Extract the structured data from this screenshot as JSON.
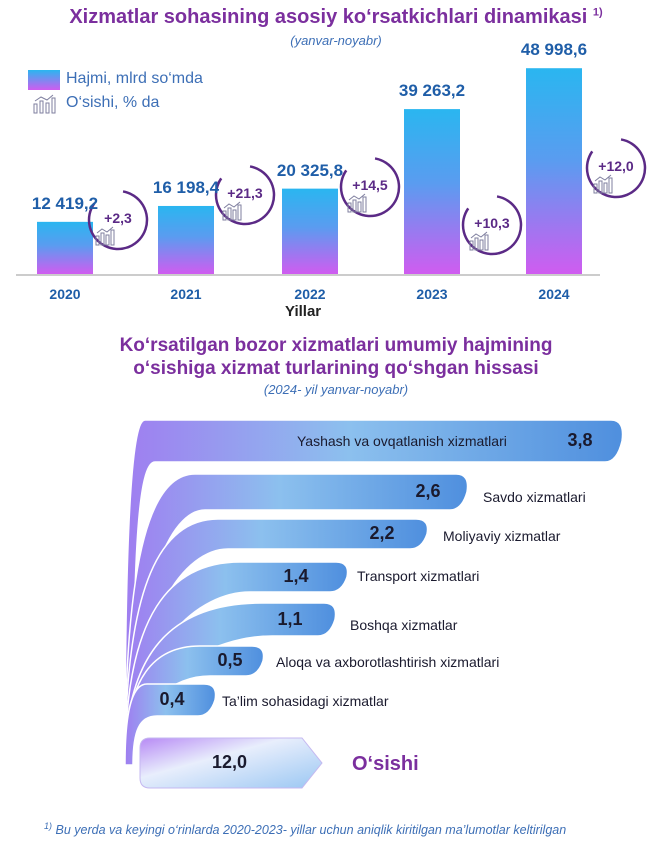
{
  "title_top": "Xizmatlar sohasining asosiy ko‘rsatkichlari dinamikasi",
  "title_top_note": "1)",
  "subtitle_top": "(yanvar-noyabr)",
  "legend": {
    "volume": "Hajmi, mlrd so‘mda",
    "growth": "O‘sishi, % da"
  },
  "x_axis_title": "Yillar",
  "title_bottom_line1": "Ko‘rsatilgan bozor xizmatlari umumiy hajmining",
  "title_bottom_line2": "o‘sishiga xizmat turlarining qo‘shgan hissasi",
  "subtitle_bottom": "(2024- yil yanvar-noyabr)",
  "footnote_mark": "1)",
  "footnote_text": "Bu yerda va keyingi o‘rinlarda 2020-2023- yillar uchun aniqlik kiritilgan ma’lumotlar keltirilgan",
  "colors": {
    "title": "#7b2f9e",
    "value": "#1f5ea8",
    "bar_top": "#2ab6f0",
    "bar_bottom": "#d05cf0",
    "arc": "#5b2a86"
  },
  "chart_data": [
    {
      "type": "bar",
      "categories": [
        "2020",
        "2021",
        "2022",
        "2023",
        "2024"
      ],
      "values": [
        12419.2,
        16198.4,
        20325.8,
        39263.2,
        48998.6
      ],
      "value_labels": [
        "12 419,2",
        "16 198,4",
        "20 325,8",
        "39 263,2",
        "48 998,6"
      ],
      "growth_labels": [
        "+2,3",
        "+21,3",
        "+14,5",
        "+10,3",
        "+12,0"
      ],
      "growth_values": [
        2.3,
        21.3,
        14.5,
        10.3,
        12.0
      ],
      "xlabel": "Yillar",
      "ylim": [
        0,
        50000
      ],
      "grid": false,
      "legend_position": "top-left"
    },
    {
      "type": "bar",
      "categories": [
        "Yashash va ovqatlanish xizmatlari",
        "Savdo xizmatlari",
        "Moliyaviy xizmatlar",
        "Transport xizmatlari",
        "Boshqa xizmatlar",
        "Aloqa va axborotlashtirish xizmatlari",
        "Ta’lim sohasidagi xizmatlar"
      ],
      "values": [
        3.8,
        2.6,
        2.2,
        1.4,
        1.1,
        0.5,
        0.4
      ],
      "value_labels": [
        "3,8",
        "2,6",
        "2,2",
        "1,4",
        "1,1",
        "0,5",
        "0,4"
      ],
      "total": {
        "label": "O‘sishi",
        "value": 12.0,
        "value_label": "12,0"
      }
    }
  ]
}
